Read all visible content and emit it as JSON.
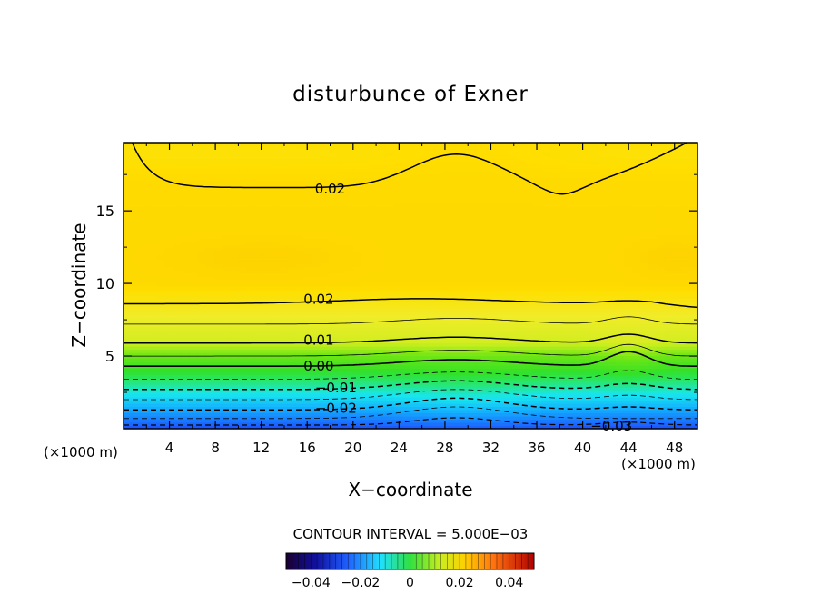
{
  "chart_data": {
    "type": "heatmap",
    "title": "disturbunce of Exner",
    "xlabel": "X−coordinate",
    "ylabel": "Z−coordinate",
    "x_unit": "(×1000 m)",
    "x_unit_right": "(×1000 m)",
    "xlim": [
      0,
      50
    ],
    "ylim": [
      0,
      19.7
    ],
    "x_ticks": [
      4,
      8,
      12,
      16,
      20,
      24,
      28,
      32,
      36,
      40,
      44,
      48
    ],
    "y_ticks": [
      5,
      10,
      15
    ],
    "contour_interval_text": "CONTOUR INTERVAL = 5.000E−03",
    "colorbar": {
      "range": [
        -0.05,
        0.05
      ],
      "ticks": [
        -0.04,
        -0.02,
        0,
        0.02,
        0.04
      ],
      "tick_labels": [
        "−0.04",
        "−0.02",
        "0",
        "0.02",
        "0.04"
      ]
    },
    "contour_levels": [
      {
        "value": "0.02",
        "label": "0.02",
        "x": 18,
        "z": 16.5
      },
      {
        "value": "0.02",
        "label": "0.02",
        "x": 17,
        "z": 8.9
      },
      {
        "value": "0.01",
        "label": "0.01",
        "x": 17,
        "z": 6.1
      },
      {
        "value": "0.00",
        "label": "0.00",
        "x": 17,
        "z": 4.3
      },
      {
        "value": "-0.01",
        "label": "−0.01",
        "x": 18.5,
        "z": 2.8
      },
      {
        "value": "-0.02",
        "label": "−0.02",
        "x": 18.5,
        "z": 1.4
      },
      {
        "value": "-0.03",
        "label": "−0.03",
        "x": 42.5,
        "z": 0.2
      }
    ]
  }
}
